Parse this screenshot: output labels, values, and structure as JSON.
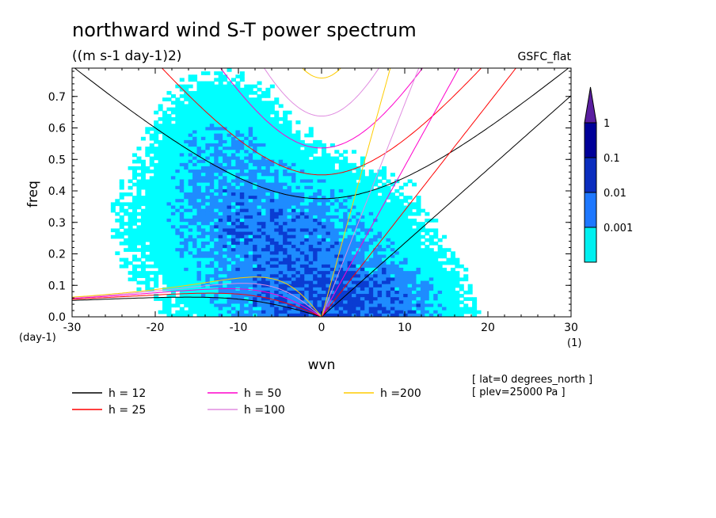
{
  "chart_data": {
    "type": "contour",
    "title": "northward wind S-T power spectrum",
    "subtitle": "((m s-1 day-1)2)",
    "source": "GSFC_flat",
    "xlabel": "wvn",
    "ylabel": "freq",
    "x_unit": "(1)",
    "y_unit": "(day-1)",
    "xlim": [
      -30,
      30
    ],
    "ylim": [
      0,
      0.79
    ],
    "x_ticks": [
      -30,
      -20,
      -10,
      0,
      10,
      20,
      30
    ],
    "y_ticks": [
      0.0,
      0.1,
      0.2,
      0.3,
      0.4,
      0.5,
      0.6,
      0.7
    ],
    "x_tick_labels": [
      "-30",
      "-20",
      "-10",
      "0",
      "10",
      "20",
      "30"
    ],
    "y_tick_labels": [
      "0.0",
      "0.1",
      "0.2",
      "0.3",
      "0.4",
      "0.5",
      "0.6",
      "0.7"
    ],
    "colorbar": {
      "levels": [
        "0.001",
        "0.01",
        "0.1",
        "1"
      ],
      "colors": [
        "#00f0f0",
        "#1e78ff",
        "#0a2dbe",
        "#000099",
        "#5a1ea0"
      ]
    },
    "contour_fill_colors": [
      "#00ffff",
      "#1e8cff",
      "#0a3cd2"
    ],
    "dispersion_curves": [
      {
        "label": "h = 12",
        "h": 12,
        "color": "#000000"
      },
      {
        "label": "h = 25",
        "h": 25,
        "color": "#ff0000"
      },
      {
        "label": "h = 50",
        "h": 50,
        "color": "#ff00cc"
      },
      {
        "label": "h =100",
        "h": 100,
        "color": "#e08ce0"
      },
      {
        "label": "h =200",
        "h": 200,
        "color": "#ffcc00"
      }
    ],
    "annotations": [
      "[ lat=0 degrees_north ]",
      "[ plev=25000 Pa ]"
    ]
  }
}
